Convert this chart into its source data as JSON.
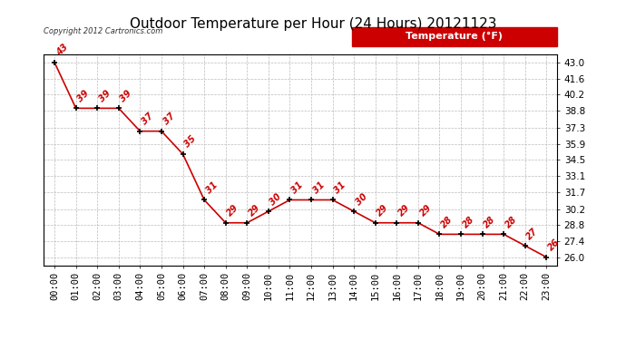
{
  "title": "Outdoor Temperature per Hour (24 Hours) 20121123",
  "copyright_text": "Copyright 2012 Cartronics.com",
  "legend_label": "Temperature (°F)",
  "hours": [
    0,
    1,
    2,
    3,
    4,
    5,
    6,
    7,
    8,
    9,
    10,
    11,
    12,
    13,
    14,
    15,
    16,
    17,
    18,
    19,
    20,
    21,
    22,
    23
  ],
  "temperatures": [
    43,
    39,
    39,
    39,
    37,
    37,
    35,
    31,
    29,
    29,
    30,
    31,
    31,
    31,
    30,
    29,
    29,
    29,
    28,
    28,
    28,
    28,
    27,
    26
  ],
  "x_labels": [
    "00:00",
    "01:00",
    "02:00",
    "03:00",
    "04:00",
    "05:00",
    "06:00",
    "07:00",
    "08:00",
    "09:00",
    "10:00",
    "11:00",
    "12:00",
    "13:00",
    "14:00",
    "15:00",
    "16:00",
    "17:00",
    "18:00",
    "19:00",
    "20:00",
    "21:00",
    "22:00",
    "23:00"
  ],
  "ylim": [
    25.3,
    43.7
  ],
  "yticks": [
    26.0,
    27.4,
    28.8,
    30.2,
    31.7,
    33.1,
    34.5,
    35.9,
    37.3,
    38.8,
    40.2,
    41.6,
    43.0
  ],
  "ytick_labels": [
    "26.0",
    "27.4",
    "28.8",
    "30.2",
    "31.7",
    "33.1",
    "34.5",
    "35.9",
    "37.3",
    "38.8",
    "40.2",
    "41.6",
    "43.0"
  ],
  "line_color": "#cc0000",
  "marker_color": "#000000",
  "label_color": "#cc0000",
  "background_color": "#ffffff",
  "grid_color": "#bbbbbb",
  "title_fontsize": 11,
  "tick_fontsize": 7.5,
  "legend_bg_color": "#cc0000",
  "legend_text_color": "#ffffff",
  "copyright_color": "#333333",
  "border_color": "#000000"
}
